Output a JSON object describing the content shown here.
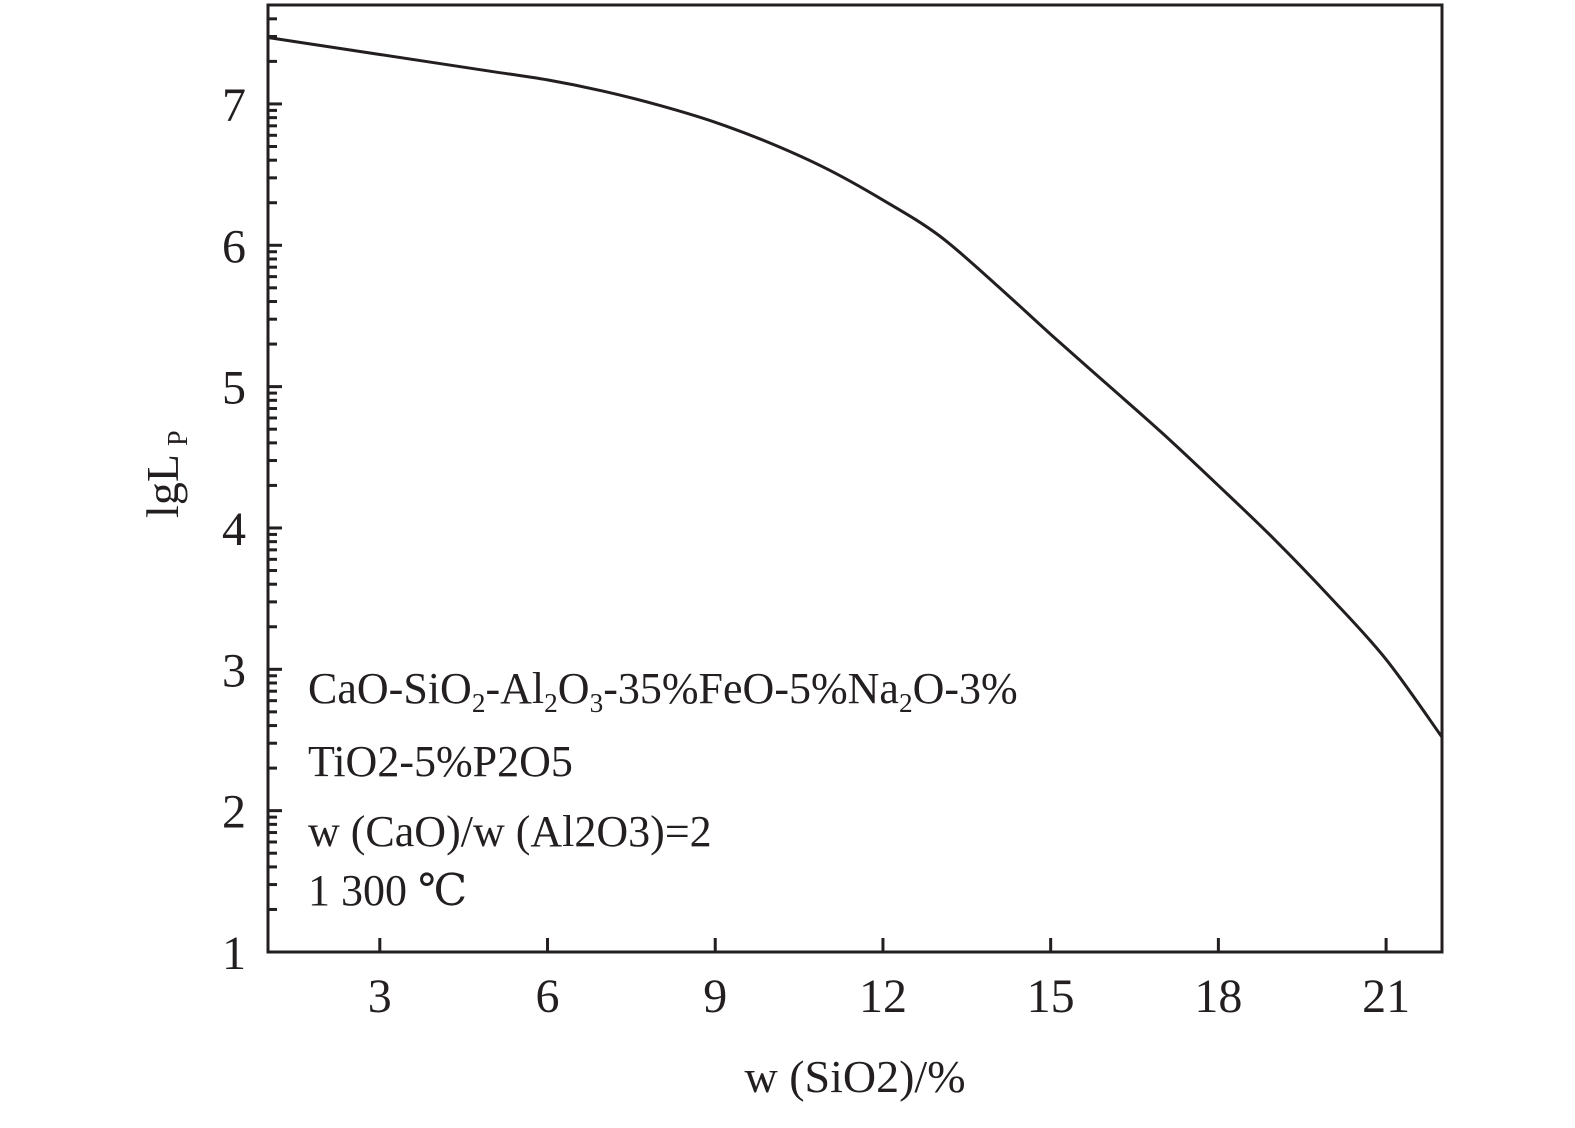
{
  "chart_data": {
    "type": "line",
    "title": "",
    "xlabel": "w (SiO2)/%",
    "ylabel": "lgL",
    "ylabel_subscript": "P",
    "xlim": [
      1,
      22
    ],
    "ylim": [
      1,
      7.7
    ],
    "x_ticks": [
      "3",
      "6",
      "9",
      "12",
      "15",
      "18",
      "21"
    ],
    "y_ticks": [
      "1",
      "2",
      "3",
      "4",
      "5",
      "6",
      "7"
    ],
    "y_minor_ticks": "logarithmic subdivisions within each unit",
    "grid": false,
    "legend": "none",
    "series": [
      {
        "color": "#231f20",
        "x": [
          1,
          2,
          3,
          4,
          5,
          6,
          7,
          8,
          9,
          10,
          11,
          12,
          13,
          14,
          15,
          16,
          17,
          18,
          19,
          20,
          21,
          22
        ],
        "y": [
          7.47,
          7.41,
          7.35,
          7.29,
          7.23,
          7.17,
          7.09,
          6.99,
          6.87,
          6.72,
          6.54,
          6.32,
          6.07,
          5.73,
          5.37,
          5.02,
          4.67,
          4.3,
          3.92,
          3.51,
          3.07,
          2.52
        ]
      }
    ],
    "annotations": [
      "CaO-SiO2-Al2O3-35%FeO-5%Na2O-3%",
      "TiO2-5%P2O5",
      "w (CaO)/w (Al2O3)=2",
      "1 300 ℃"
    ]
  }
}
